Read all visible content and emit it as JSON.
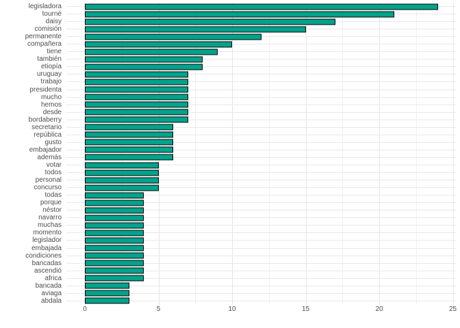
{
  "chart_data": {
    "type": "bar",
    "orientation": "horizontal",
    "title": "",
    "xlabel": "",
    "ylabel": "",
    "xlim": [
      0,
      25
    ],
    "x_ticks": [
      0,
      5,
      10,
      15,
      20,
      25
    ],
    "x_minor_gridlines": [
      2.5,
      7.5,
      12.5,
      17.5,
      22.5
    ],
    "grid": "on",
    "legend": "none",
    "categories": [
      "legisladora",
      "tourné",
      "daisy",
      "comisión",
      "permanente",
      "compañera",
      "tiene",
      "también",
      "etiopía",
      "uruguay",
      "trabajo",
      "presidenta",
      "mucho",
      "hemos",
      "desde",
      "bordaberry",
      "secretario",
      "república",
      "gusto",
      "embajador",
      "además",
      "votar",
      "todos",
      "personal",
      "concurso",
      "todas",
      "porque",
      "néstor",
      "navarro",
      "muchas",
      "momento",
      "legislador",
      "embajada",
      "condiciones",
      "bancadas",
      "ascendió",
      "africa",
      "bancada",
      "aviaga",
      "abdala"
    ],
    "values": [
      24,
      21,
      17,
      15,
      12,
      10,
      9,
      8,
      8,
      7,
      7,
      7,
      7,
      7,
      7,
      7,
      6,
      6,
      6,
      6,
      6,
      5,
      5,
      5,
      5,
      4,
      4,
      4,
      4,
      4,
      4,
      4,
      4,
      4,
      4,
      4,
      4,
      3,
      3,
      3
    ]
  },
  "style": {
    "bar_fill": "#00A38B",
    "bar_border": "#000000",
    "major_grid_color": "#E4E4E4",
    "minor_grid_color": "#EFEFEF",
    "row_grid_color": "#E8E8E8",
    "axis_text_color": "#4D4D4D",
    "background": "#FFFFFF"
  }
}
